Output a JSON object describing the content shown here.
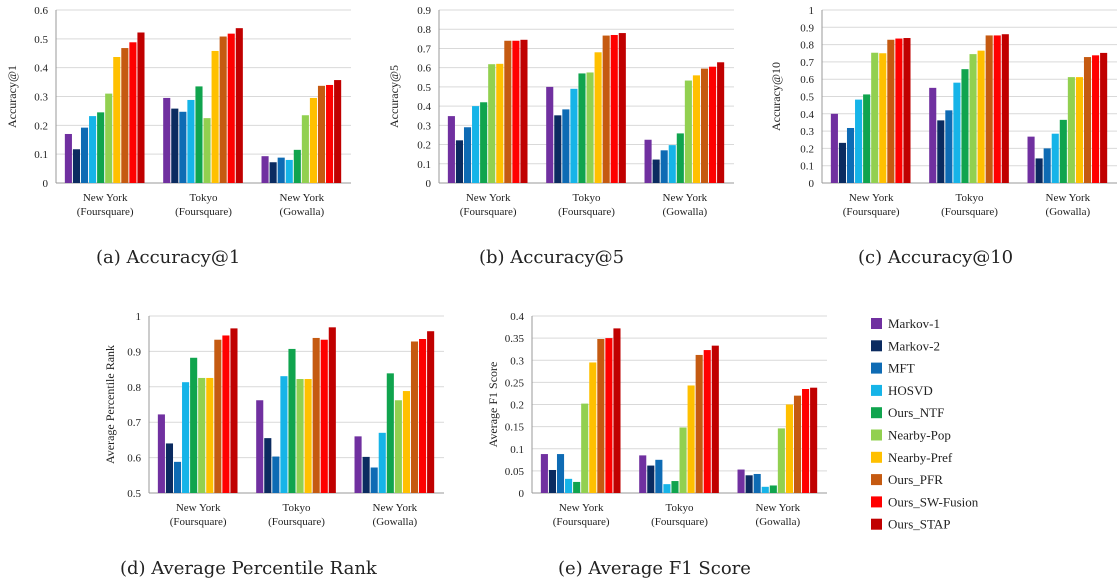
{
  "series_styles": [
    {
      "name": "Markov-1",
      "color": "#7030A0"
    },
    {
      "name": "Markov-2",
      "color": "#0B2B60"
    },
    {
      "name": "MFT",
      "color": "#0E6BB4"
    },
    {
      "name": "HOSVD",
      "color": "#16B4E8"
    },
    {
      "name": "Ours_NTF",
      "color": "#10A44E"
    },
    {
      "name": "Nearby-Pop",
      "color": "#92D050"
    },
    {
      "name": "Nearby-Pref",
      "color": "#FFC000"
    },
    {
      "name": "Ours_PFR",
      "color": "#C55A11"
    },
    {
      "name": "Ours_SW-Fusion",
      "color": "#FF0000"
    },
    {
      "name": "Ours_STAP",
      "color": "#C00000"
    }
  ],
  "chart_data": [
    {
      "type": "bar",
      "caption": "(a)  Accuracy@1",
      "ylabel": "Accuracy@1",
      "ylim": [
        0,
        0.6
      ],
      "yticks": [
        "0",
        "0.1",
        "0.2",
        "0.3",
        "0.4",
        "0.5",
        "0.6"
      ],
      "categories": [
        [
          "New York",
          "(Foursquare)"
        ],
        [
          "Tokyo",
          "(Foursquare)"
        ],
        [
          "New York",
          "(Gowalla)"
        ]
      ],
      "series": [
        {
          "name": "Markov-1",
          "values": [
            0.17,
            0.295,
            0.093
          ]
        },
        {
          "name": "Markov-2",
          "values": [
            0.117,
            0.258,
            0.072
          ]
        },
        {
          "name": "MFT",
          "values": [
            0.192,
            0.247,
            0.088
          ]
        },
        {
          "name": "HOSVD",
          "values": [
            0.232,
            0.288,
            0.08
          ]
        },
        {
          "name": "Ours_NTF",
          "values": [
            0.245,
            0.335,
            0.115
          ]
        },
        {
          "name": "Nearby-Pop",
          "values": [
            0.31,
            0.225,
            0.235
          ]
        },
        {
          "name": "Nearby-Pref",
          "values": [
            0.437,
            0.458,
            0.295
          ]
        },
        {
          "name": "Ours_PFR",
          "values": [
            0.468,
            0.508,
            0.337
          ]
        },
        {
          "name": "Ours_SW-Fusion",
          "values": [
            0.488,
            0.518,
            0.34
          ]
        },
        {
          "name": "Ours_STAP",
          "values": [
            0.522,
            0.537,
            0.357
          ]
        }
      ]
    },
    {
      "type": "bar",
      "caption": "(b)  Accuracy@5",
      "ylabel": "Accuracy@5",
      "ylim": [
        0,
        0.9
      ],
      "yticks": [
        "0",
        "0.1",
        "0.2",
        "0.3",
        "0.4",
        "0.5",
        "0.6",
        "0.7",
        "0.8",
        "0.9"
      ],
      "categories": [
        [
          "New York",
          "(Foursquare)"
        ],
        [
          "Tokyo",
          "(Foursquare)"
        ],
        [
          "New York",
          "(Gowalla)"
        ]
      ],
      "series": [
        {
          "name": "Markov-1",
          "values": [
            0.348,
            0.5,
            0.225
          ]
        },
        {
          "name": "Markov-2",
          "values": [
            0.222,
            0.352,
            0.122
          ]
        },
        {
          "name": "MFT",
          "values": [
            0.29,
            0.383,
            0.17
          ]
        },
        {
          "name": "HOSVD",
          "values": [
            0.4,
            0.49,
            0.197
          ]
        },
        {
          "name": "Ours_NTF",
          "values": [
            0.42,
            0.57,
            0.258
          ]
        },
        {
          "name": "Nearby-Pop",
          "values": [
            0.618,
            0.575,
            0.533
          ]
        },
        {
          "name": "Nearby-Pref",
          "values": [
            0.62,
            0.68,
            0.56
          ]
        },
        {
          "name": "Ours_PFR",
          "values": [
            0.74,
            0.767,
            0.595
          ]
        },
        {
          "name": "Ours_SW-Fusion",
          "values": [
            0.74,
            0.77,
            0.605
          ]
        },
        {
          "name": "Ours_STAP",
          "values": [
            0.745,
            0.78,
            0.628
          ]
        }
      ]
    },
    {
      "type": "bar",
      "caption": "(c)  Accuracy@10",
      "ylabel": "Accuracy@10",
      "ylim": [
        0,
        1
      ],
      "yticks": [
        "0",
        "0.1",
        "0.2",
        "0.3",
        "0.4",
        "0.5",
        "0.6",
        "0.7",
        "0.8",
        "0.9",
        "1"
      ],
      "categories": [
        [
          "New York",
          "(Foursquare)"
        ],
        [
          "Tokyo",
          "(Foursquare)"
        ],
        [
          "New York",
          "(Gowalla)"
        ]
      ],
      "series": [
        {
          "name": "Markov-1",
          "values": [
            0.4,
            0.55,
            0.268
          ]
        },
        {
          "name": "Markov-2",
          "values": [
            0.232,
            0.362,
            0.142
          ]
        },
        {
          "name": "MFT",
          "values": [
            0.318,
            0.42,
            0.2
          ]
        },
        {
          "name": "HOSVD",
          "values": [
            0.482,
            0.58,
            0.285
          ]
        },
        {
          "name": "Ours_NTF",
          "values": [
            0.512,
            0.658,
            0.365
          ]
        },
        {
          "name": "Nearby-Pop",
          "values": [
            0.753,
            0.745,
            0.612
          ]
        },
        {
          "name": "Nearby-Pref",
          "values": [
            0.75,
            0.765,
            0.612
          ]
        },
        {
          "name": "Ours_PFR",
          "values": [
            0.828,
            0.853,
            0.728
          ]
        },
        {
          "name": "Ours_SW-Fusion",
          "values": [
            0.835,
            0.853,
            0.738
          ]
        },
        {
          "name": "Ours_STAP",
          "values": [
            0.838,
            0.86,
            0.752
          ]
        }
      ]
    },
    {
      "type": "bar",
      "caption": "(d)  Average Percentile Rank",
      "ylabel": "Average Percentile Rank",
      "ylim": [
        0.5,
        1
      ],
      "yticks": [
        "0.5",
        "0.6",
        "0.7",
        "0.8",
        "0.9",
        "1"
      ],
      "categories": [
        [
          "New York",
          "(Foursquare)"
        ],
        [
          "Tokyo",
          "(Foursquare)"
        ],
        [
          "New York",
          "(Gowalla)"
        ]
      ],
      "series": [
        {
          "name": "Markov-1",
          "values": [
            0.722,
            0.762,
            0.66
          ]
        },
        {
          "name": "Markov-2",
          "values": [
            0.64,
            0.655,
            0.602
          ]
        },
        {
          "name": "MFT",
          "values": [
            0.588,
            0.603,
            0.572
          ]
        },
        {
          "name": "HOSVD",
          "values": [
            0.813,
            0.83,
            0.67
          ]
        },
        {
          "name": "Ours_NTF",
          "values": [
            0.882,
            0.907,
            0.838
          ]
        },
        {
          "name": "Nearby-Pop",
          "values": [
            0.825,
            0.822,
            0.762
          ]
        },
        {
          "name": "Nearby-Pref",
          "values": [
            0.825,
            0.822,
            0.788
          ]
        },
        {
          "name": "Ours_PFR",
          "values": [
            0.933,
            0.938,
            0.928
          ]
        },
        {
          "name": "Ours_SW-Fusion",
          "values": [
            0.945,
            0.933,
            0.935
          ]
        },
        {
          "name": "Ours_STAP",
          "values": [
            0.965,
            0.968,
            0.957
          ]
        }
      ]
    },
    {
      "type": "bar",
      "caption": "(e)  Average F1 Score",
      "ylabel": "Average F1 Score",
      "ylim": [
        0,
        0.4
      ],
      "yticks": [
        "0",
        "0.05",
        "0.1",
        "0.15",
        "0.2",
        "0.25",
        "0.3",
        "0.35",
        "0.4"
      ],
      "categories": [
        [
          "New York",
          "(Foursquare)"
        ],
        [
          "Tokyo",
          "(Foursquare)"
        ],
        [
          "New York",
          "(Gowalla)"
        ]
      ],
      "series": [
        {
          "name": "Markov-1",
          "values": [
            0.088,
            0.085,
            0.053
          ]
        },
        {
          "name": "Markov-2",
          "values": [
            0.052,
            0.062,
            0.04
          ]
        },
        {
          "name": "MFT",
          "values": [
            0.088,
            0.075,
            0.043
          ]
        },
        {
          "name": "HOSVD",
          "values": [
            0.032,
            0.02,
            0.014
          ]
        },
        {
          "name": "Ours_NTF",
          "values": [
            0.025,
            0.027,
            0.017
          ]
        },
        {
          "name": "Nearby-Pop",
          "values": [
            0.202,
            0.148,
            0.146
          ]
        },
        {
          "name": "Nearby-Pref",
          "values": [
            0.295,
            0.243,
            0.2
          ]
        },
        {
          "name": "Ours_PFR",
          "values": [
            0.348,
            0.312,
            0.22
          ]
        },
        {
          "name": "Ours_SW-Fusion",
          "values": [
            0.35,
            0.323,
            0.235
          ]
        },
        {
          "name": "Ours_STAP",
          "values": [
            0.372,
            0.333,
            0.238
          ]
        }
      ]
    }
  ]
}
